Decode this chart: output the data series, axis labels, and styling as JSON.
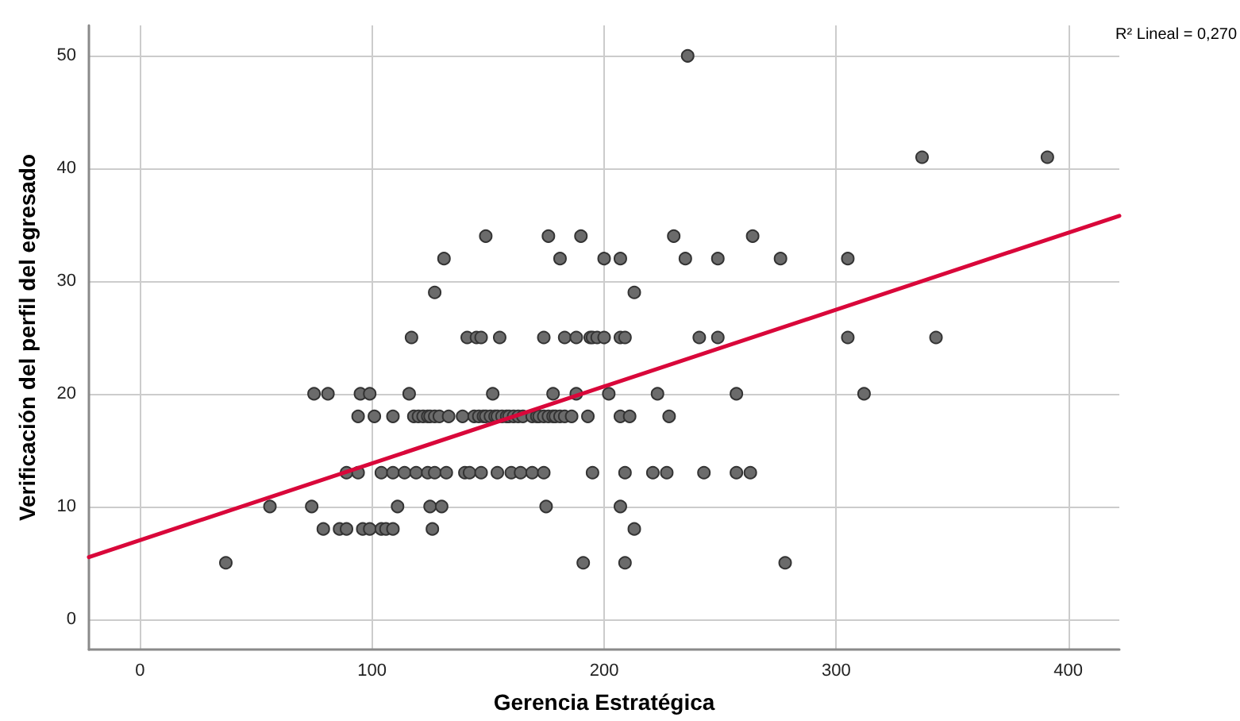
{
  "chart_data": {
    "type": "scatter",
    "xlabel": "Gerencia Estratégica",
    "ylabel": "Verificación del perfil del egresado",
    "annotations": [
      "R² Lineal = 0,270"
    ],
    "xlim": [
      -22,
      422
    ],
    "xticks": [
      0,
      100,
      200,
      300,
      400
    ],
    "ylim": [
      -2.7,
      52.7
    ],
    "yticks": [
      0,
      10,
      20,
      30,
      40,
      50
    ],
    "grid": true,
    "marker": "circle",
    "series": [
      {
        "color": "#6b6b6b",
        "x": [
          37,
          191,
          209,
          278,
          79,
          86,
          89,
          96,
          99,
          104,
          106,
          109,
          126,
          213,
          56,
          74,
          111,
          125,
          130,
          175,
          207,
          89,
          94,
          104,
          109,
          114,
          119,
          124,
          127,
          132,
          140,
          142,
          147,
          154,
          160,
          164,
          169,
          174,
          195,
          209,
          221,
          227,
          243,
          257,
          263,
          94,
          101,
          109,
          118,
          120,
          122,
          124,
          125,
          127,
          129,
          133,
          139,
          144,
          146,
          148,
          149,
          151,
          153,
          154,
          156,
          158,
          159,
          161,
          163,
          165,
          169,
          171,
          172,
          174,
          176,
          178,
          179,
          181,
          183,
          186,
          193,
          207,
          211,
          228,
          75,
          81,
          95,
          99,
          116,
          152,
          178,
          188,
          202,
          223,
          257,
          312,
          117,
          141,
          145,
          147,
          155,
          174,
          183,
          188,
          194,
          195,
          197,
          200,
          207,
          209,
          241,
          249,
          305,
          343,
          127,
          213,
          131,
          181,
          200,
          207,
          235,
          249,
          276,
          305,
          149,
          176,
          190,
          230,
          264,
          337,
          391,
          236
        ],
        "values": [
          5,
          5,
          5,
          5,
          8,
          8,
          8,
          8,
          8,
          8,
          8,
          8,
          8,
          8,
          10,
          10,
          10,
          10,
          10,
          10,
          10,
          13,
          13,
          13,
          13,
          13,
          13,
          13,
          13,
          13,
          13,
          13,
          13,
          13,
          13,
          13,
          13,
          13,
          13,
          13,
          13,
          13,
          13,
          13,
          13,
          18,
          18,
          18,
          18,
          18,
          18,
          18,
          18,
          18,
          18,
          18,
          18,
          18,
          18,
          18,
          18,
          18,
          18,
          18,
          18,
          18,
          18,
          18,
          18,
          18,
          18,
          18,
          18,
          18,
          18,
          18,
          18,
          18,
          18,
          18,
          18,
          18,
          18,
          18,
          20,
          20,
          20,
          20,
          20,
          20,
          20,
          20,
          20,
          20,
          20,
          20,
          25,
          25,
          25,
          25,
          25,
          25,
          25,
          25,
          25,
          25,
          25,
          25,
          25,
          25,
          25,
          25,
          25,
          25,
          29,
          29,
          32,
          32,
          32,
          32,
          32,
          32,
          32,
          32,
          34,
          34,
          34,
          34,
          34,
          41,
          41,
          50
        ]
      },
      {
        "type": "line",
        "color": "#d9073a",
        "marker": "none",
        "x": [
          -22,
          422
        ],
        "values": [
          5.5,
          35.8
        ]
      }
    ]
  }
}
